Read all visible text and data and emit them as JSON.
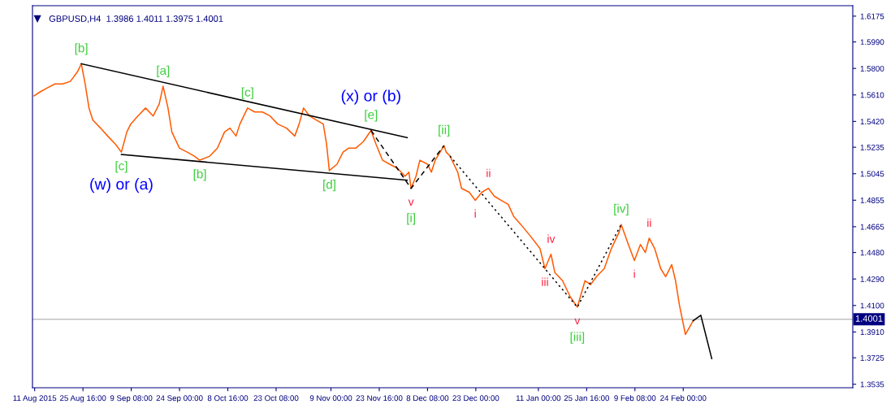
{
  "chart_data": {
    "type": "line",
    "title": "GBPUSD,H4  1.3986 1.4011 1.3975 1.4001",
    "xlim": [
      "2015-08-10T08:00",
      "2016-04-15T12:00"
    ],
    "ylim": [
      1.351,
      1.625
    ],
    "xticks": [
      {
        "value": "2015-08-11",
        "label": "11 Aug 2015"
      },
      {
        "value": "2015-08-25T16:00",
        "label": "25 Aug 16:00"
      },
      {
        "value": "2015-09-09T08:00",
        "label": "9 Sep 08:00"
      },
      {
        "value": "2015-09-24T00:00",
        "label": "24 Sep 00:00"
      },
      {
        "value": "2015-10-08T16:00",
        "label": "8 Oct 16:00"
      },
      {
        "value": "2015-10-23T08:00",
        "label": "23 Oct 08:00"
      },
      {
        "value": "2015-11-09T00:00",
        "label": "9 Nov 00:00"
      },
      {
        "value": "2015-11-23T16:00",
        "label": "23 Nov 16:00"
      },
      {
        "value": "2015-12-08T08:00",
        "label": "8 Dec 08:00"
      },
      {
        "value": "2015-12-23T00:00",
        "label": "23 Dec 00:00"
      },
      {
        "value": "2016-01-11T00:00",
        "label": "11 Jan 00:00"
      },
      {
        "value": "2016-01-25T16:00",
        "label": "25 Jan 16:00"
      },
      {
        "value": "2016-02-09T08:00",
        "label": "9 Feb 08:00"
      },
      {
        "value": "2016-02-24T00:00",
        "label": "24 Feb 00:00"
      }
    ],
    "yticks": [
      1.6175,
      {
        "value": 1.599,
        "label": "1.5990"
      },
      {
        "value": 1.58,
        "label": "1.5800"
      },
      {
        "value": 1.561,
        "label": "1.5610"
      },
      {
        "value": 1.542,
        "label": "1.5420"
      },
      1.5235,
      1.5045,
      1.4855,
      1.4665,
      {
        "value": 1.448,
        "label": "1.4480"
      },
      {
        "value": 1.429,
        "label": "1.4290"
      },
      {
        "value": 1.41,
        "label": "1.4100"
      },
      {
        "value": 1.391,
        "label": "1.3910"
      },
      1.3725,
      1.3535
    ],
    "grid": false,
    "legend": false,
    "marker": "none",
    "series": [
      {
        "color": "#ff5a00",
        "line_style": "solid",
        "x": [
          "2015-08-10T20:00",
          "2015-08-12T16:00",
          "2015-08-14T20:00",
          "2015-08-17T04:00",
          "2015-08-19T12:00",
          "2015-08-21T20:00",
          "2015-08-24T00:00",
          "2015-08-25T04:00",
          "2015-08-26T08:00",
          "2015-08-27T12:00",
          "2015-08-28T16:00",
          "2015-08-31T00:00",
          "2015-09-02T04:00",
          "2015-09-04T12:00",
          "2015-09-06T08:00",
          "2015-09-08T00:00",
          "2015-09-09T04:00",
          "2015-09-11T08:00",
          "2015-09-13T16:00",
          "2015-09-16T00:00",
          "2015-09-17T20:00",
          "2015-09-19T00:00",
          "2015-09-20T12:00",
          "2015-09-21T16:00",
          "2015-09-24T00:00",
          "2015-09-26T08:00",
          "2015-09-28T12:00",
          "2015-09-30T04:00",
          "2015-10-03T04:00",
          "2015-10-05T12:00",
          "2015-10-07T16:00",
          "2015-10-09T08:00",
          "2015-10-11T04:00",
          "2015-10-12T08:00",
          "2015-10-14T16:00",
          "2015-10-16T20:00",
          "2015-10-19T04:00",
          "2015-10-21T12:00",
          "2015-10-23T20:00",
          "2015-10-26T12:00",
          "2015-10-29T00:00",
          "2015-10-30T08:00",
          "2015-10-31T16:00",
          "2015-11-02T12:00",
          "2015-11-04T12:00",
          "2015-11-06T16:00",
          "2015-11-07T16:00",
          "2015-11-08T12:00",
          "2015-11-10T20:00",
          "2015-11-12T16:00",
          "2015-11-14T08:00",
          "2015-11-16T12:00",
          "2015-11-18T20:00",
          "2015-11-21T04:00",
          "2015-11-22T16:00",
          "2015-11-24T16:00",
          "2015-11-26T20:00",
          "2015-11-29T04:00",
          "2015-12-01T12:00",
          "2015-12-02T16:00",
          "2015-12-03T08:00",
          "2015-12-04T20:00",
          "2015-12-06T00:00",
          "2015-12-08T08:00",
          "2015-12-09T12:00",
          "2015-12-10T16:00",
          "2015-12-13T08:00",
          "2015-12-14T00:00",
          "2015-12-15T04:00",
          "2015-12-16T08:00",
          "2015-12-17T12:00",
          "2015-12-18T16:00",
          "2015-12-21T00:00",
          "2015-12-22T20:00",
          "2015-12-24T20:00",
          "2015-12-26T20:00",
          "2015-12-28T16:00",
          "2015-12-30T16:00",
          "2016-01-01T20:00",
          "2016-01-03T12:00",
          "2016-01-05T16:00",
          "2016-01-08T16:00",
          "2016-01-11T12:00",
          "2016-01-13T00:00",
          "2016-01-14T20:00",
          "2016-01-16T00:00",
          "2016-01-18T08:00",
          "2016-01-20T16:00",
          "2016-01-22T20:00",
          "2016-01-25T04:00",
          "2016-01-26T20:00",
          "2016-01-28T16:00",
          "2016-01-31T00:00",
          "2016-02-02T04:00",
          "2016-02-04T12:00",
          "2016-02-05T04:00",
          "2016-02-07T08:00",
          "2016-02-09T04:00",
          "2016-02-11T00:00",
          "2016-02-12T12:00",
          "2016-02-13T16:00",
          "2016-02-15T08:00",
          "2016-02-17T04:00",
          "2016-02-18T16:00",
          "2016-02-20T12:00",
          "2016-02-21T16:00",
          "2016-02-22T20:00",
          "2016-02-24T16:00",
          "2016-02-26T08:00",
          "2016-02-27T00:00"
        ],
        "values": [
          1.5603,
          1.5632,
          1.566,
          1.5689,
          1.5689,
          1.5707,
          1.5776,
          1.5833,
          1.5689,
          1.5516,
          1.543,
          1.5372,
          1.5315,
          1.5257,
          1.52,
          1.5344,
          1.5401,
          1.5459,
          1.5516,
          1.5459,
          1.5545,
          1.5672,
          1.5516,
          1.5344,
          1.5228,
          1.52,
          1.5171,
          1.5142,
          1.5171,
          1.5228,
          1.5344,
          1.5372,
          1.5315,
          1.5401,
          1.5516,
          1.5488,
          1.5488,
          1.5459,
          1.5401,
          1.5372,
          1.5315,
          1.5401,
          1.5516,
          1.5459,
          1.543,
          1.5401,
          1.5257,
          1.5067,
          1.5113,
          1.52,
          1.5228,
          1.5228,
          1.5275,
          1.5355,
          1.5257,
          1.5142,
          1.5113,
          1.5084,
          1.5027,
          1.5056,
          1.494,
          1.5027,
          1.5142,
          1.5113,
          1.5056,
          1.5142,
          1.5246,
          1.52,
          1.5171,
          1.5113,
          1.5056,
          1.494,
          1.4912,
          1.4854,
          1.4912,
          1.494,
          1.4883,
          1.4854,
          1.4825,
          1.4739,
          1.4681,
          1.4595,
          1.4508,
          1.4364,
          1.4468,
          1.4336,
          1.4278,
          1.4163,
          1.4088,
          1.4278,
          1.4249,
          1.4307,
          1.4364,
          1.4508,
          1.4624,
          1.4681,
          1.4537,
          1.4422,
          1.4537,
          1.448,
          1.4583,
          1.4508,
          1.4364,
          1.4307,
          1.4393,
          1.4278,
          1.4105,
          1.3892,
          1.3961,
          1.399
        ]
      },
      {
        "color": "#000000",
        "line_style": "solid",
        "x": [
          "2015-08-25T04:00",
          "2015-12-02T04:00"
        ],
        "values": [
          1.5833,
          1.5303
        ]
      },
      {
        "color": "#000000",
        "line_style": "solid",
        "x": [
          "2015-09-06T08:00",
          "2015-12-02T04:00"
        ],
        "values": [
          1.5183,
          1.4998
        ]
      },
      {
        "color": "#000000",
        "line_style": "dashed",
        "x": [
          "2015-11-21T04:00",
          "2015-12-03T08:00",
          "2015-12-13T08:00"
        ],
        "values": [
          1.5355,
          1.494,
          1.5246
        ]
      },
      {
        "color": "#000000",
        "line_style": "dotted",
        "x": [
          "2015-12-15T04:00",
          "2016-01-22T20:00",
          "2016-02-05T04:00"
        ],
        "values": [
          1.5171,
          1.4088,
          1.4681
        ]
      },
      {
        "color": "#000000",
        "line_style": "solid",
        "x": [
          "2016-02-27T00:00",
          "2016-02-29T08:00",
          "2016-03-03T16:00"
        ],
        "values": [
          1.399,
          1.403,
          1.3719
        ]
      }
    ],
    "ref_lines": [
      {
        "axis": "y",
        "value": 1.4001,
        "label": "1.4001",
        "color": "#c0c0c0"
      }
    ],
    "annotations": [
      {
        "text": "[b]",
        "x": "2015-08-25T04:00",
        "y": 1.5833
      },
      {
        "text": "[a]",
        "x": "2015-09-19T00:00",
        "y": 1.5672
      },
      {
        "text": "[c]",
        "x": "2015-10-14T16:00",
        "y": 1.5516
      },
      {
        "text": "(x) or (b)",
        "x": "2015-11-21T04:00",
        "y": 1.5355
      },
      {
        "text": "[e]",
        "x": "2015-11-21T04:00",
        "y": 1.5355
      },
      {
        "text": "[ii]",
        "x": "2015-12-13T08:00",
        "y": 1.5246
      },
      {
        "text": "[c]",
        "x": "2015-09-06T08:00",
        "y": 1.52
      },
      {
        "text": "[b]",
        "x": "2015-09-30T04:00",
        "y": 1.5142
      },
      {
        "text": "(w) or (a)",
        "x": "2015-09-06T08:00",
        "y": 1.52
      },
      {
        "text": "[d]",
        "x": "2015-11-08T12:00",
        "y": 1.5067
      },
      {
        "text": "v",
        "x": "2015-12-03T08:00",
        "y": 1.494
      },
      {
        "text": "[i]",
        "x": "2015-12-03T08:00",
        "y": 1.494
      },
      {
        "text": "ii",
        "x": "2015-12-26T20:00",
        "y": 1.494
      },
      {
        "text": "i",
        "x": "2015-12-22T20:00",
        "y": 1.4854
      },
      {
        "text": "iv",
        "x": "2016-01-14T20:00",
        "y": 1.4468
      },
      {
        "text": "iii",
        "x": "2016-01-13T00:00",
        "y": 1.4364
      },
      {
        "text": "[iv]",
        "x": "2016-02-05T04:00",
        "y": 1.4681
      },
      {
        "text": "ii",
        "x": "2016-02-13T16:00",
        "y": 1.4583
      },
      {
        "text": "i",
        "x": "2016-02-09T04:00",
        "y": 1.4422
      },
      {
        "text": "v",
        "x": "2016-01-22T20:00",
        "y": 1.4088
      },
      {
        "text": "[iii]",
        "x": "2016-01-22T20:00",
        "y": 1.4088
      }
    ]
  }
}
